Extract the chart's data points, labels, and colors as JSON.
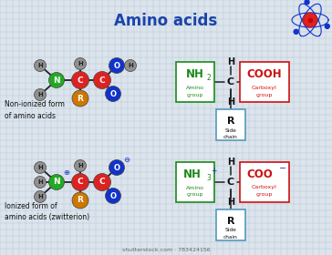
{
  "title": "Amino acids",
  "bg_color": "#dce4ec",
  "grid_color": "#b8c8d8",
  "title_color": "#1a44aa",
  "atom_colors": {
    "H": "#909090",
    "N": "#22aa22",
    "C_center": "#dd2222",
    "C_carboxyl": "#dd2222",
    "O": "#1133cc",
    "R": "#cc7700"
  },
  "text_color_black": "#111111",
  "text_color_green": "#1a8a1a",
  "text_color_red": "#cc1111",
  "text_color_blue": "#1133cc",
  "label_nonionized": "Non-ionized form\nof amino acids",
  "label_ionized": "Ionized form of\namino acids (zwitterion)",
  "shutterstock": "shutterstock.com · 783424156"
}
